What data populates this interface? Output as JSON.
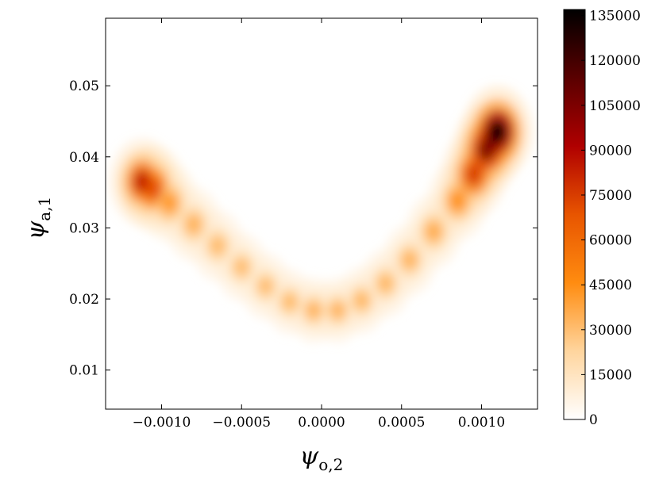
{
  "chart_data": {
    "type": "heatmap",
    "title": "",
    "xlabel": {
      "symbol": "ψ",
      "subscript": "o,2"
    },
    "ylabel": {
      "symbol": "ψ",
      "subscript": "a,1"
    },
    "xlim": [
      -0.00135,
      0.00135
    ],
    "ylim": [
      0.0045,
      0.0595
    ],
    "x_ticks": [
      -0.001,
      -0.0005,
      0.0,
      0.0005,
      0.001
    ],
    "x_tick_labels": [
      "−0.0010",
      "−0.0005",
      "0.0000",
      "0.0005",
      "0.0010"
    ],
    "y_ticks": [
      0.01,
      0.02,
      0.03,
      0.04,
      0.05
    ],
    "y_tick_labels": [
      "0.01",
      "0.02",
      "0.03",
      "0.04",
      "0.05"
    ],
    "colorbar": {
      "min": 0,
      "max": 137000,
      "ticks": [
        0,
        15000,
        30000,
        45000,
        60000,
        75000,
        90000,
        105000,
        120000,
        135000
      ],
      "tick_labels": [
        "0",
        "15000",
        "30000",
        "45000",
        "60000",
        "75000",
        "90000",
        "105000",
        "120000",
        "135000"
      ],
      "colormap": "gist_heat_r",
      "colors": [
        "#ffffff",
        "#ffd59e",
        "#ff8c10",
        "#e85500",
        "#b00000",
        "#5a0000",
        "#000000"
      ]
    },
    "ridge": [
      {
        "x": -0.00112,
        "y": 0.0365,
        "density": 85000,
        "spread_y": 0.0058
      },
      {
        "x": -0.00105,
        "y": 0.0355,
        "density": 70000,
        "spread_y": 0.0058
      },
      {
        "x": -0.00095,
        "y": 0.0335,
        "density": 42000,
        "spread_y": 0.0052
      },
      {
        "x": -0.0008,
        "y": 0.0305,
        "density": 34000,
        "spread_y": 0.005
      },
      {
        "x": -0.00065,
        "y": 0.0275,
        "density": 31000,
        "spread_y": 0.0048
      },
      {
        "x": -0.0005,
        "y": 0.0245,
        "density": 30000,
        "spread_y": 0.0046
      },
      {
        "x": -0.00035,
        "y": 0.0218,
        "density": 30000,
        "spread_y": 0.0045
      },
      {
        "x": -0.0002,
        "y": 0.0196,
        "density": 31000,
        "spread_y": 0.0044
      },
      {
        "x": -5e-05,
        "y": 0.0184,
        "density": 33000,
        "spread_y": 0.0044
      },
      {
        "x": 0.0001,
        "y": 0.0184,
        "density": 33000,
        "spread_y": 0.0044
      },
      {
        "x": 0.00025,
        "y": 0.0198,
        "density": 32000,
        "spread_y": 0.0045
      },
      {
        "x": 0.0004,
        "y": 0.0222,
        "density": 32000,
        "spread_y": 0.0046
      },
      {
        "x": 0.00055,
        "y": 0.0255,
        "density": 33000,
        "spread_y": 0.0048
      },
      {
        "x": 0.0007,
        "y": 0.0295,
        "density": 36000,
        "spread_y": 0.005
      },
      {
        "x": 0.00085,
        "y": 0.0338,
        "density": 45000,
        "spread_y": 0.0053
      },
      {
        "x": 0.00095,
        "y": 0.0375,
        "density": 75000,
        "spread_y": 0.0058
      },
      {
        "x": 0.00103,
        "y": 0.041,
        "density": 105000,
        "spread_y": 0.006
      },
      {
        "x": 0.0011,
        "y": 0.0435,
        "density": 135000,
        "spread_y": 0.0062
      }
    ]
  }
}
